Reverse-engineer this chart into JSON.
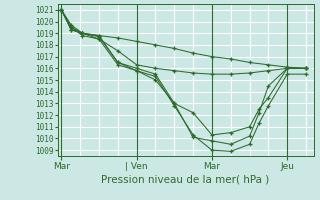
{
  "title": "Pression niveau de la mer( hPa )",
  "bg_color": "#cce8e4",
  "plot_bg_color": "#cce8e4",
  "grid_color": "#ffffff",
  "line_color": "#2d6a2d",
  "ylim": [
    1008.5,
    1021.5
  ],
  "yticks": [
    1009,
    1010,
    1011,
    1012,
    1013,
    1014,
    1015,
    1016,
    1017,
    1018,
    1019,
    1020,
    1021
  ],
  "xlim": [
    -0.05,
    3.35
  ],
  "xtick_labels": [
    "Mar",
    "| Ven",
    "Mar",
    "Jeu"
  ],
  "xtick_positions": [
    0,
    1,
    2,
    3
  ],
  "series": [
    {
      "x": [
        0.0,
        0.13,
        0.28,
        0.5,
        0.75,
        1.0,
        1.25,
        1.5,
        1.75,
        2.0,
        2.25,
        2.5,
        2.75,
        3.0,
        3.25
      ],
      "y": [
        1021.0,
        1019.7,
        1019.0,
        1018.8,
        1018.6,
        1018.3,
        1018.0,
        1017.7,
        1017.3,
        1017.0,
        1016.8,
        1016.5,
        1016.3,
        1016.1,
        1016.0
      ]
    },
    {
      "x": [
        0.0,
        0.13,
        0.28,
        0.5,
        0.75,
        1.0,
        1.25,
        1.5,
        1.75,
        2.0,
        2.25,
        2.5,
        2.75,
        3.0,
        3.25
      ],
      "y": [
        1021.0,
        1019.5,
        1018.8,
        1018.5,
        1017.5,
        1016.3,
        1016.0,
        1015.8,
        1015.6,
        1015.5,
        1015.5,
        1015.6,
        1015.8,
        1016.0,
        1016.0
      ]
    },
    {
      "x": [
        0.0,
        0.13,
        0.28,
        0.5,
        0.75,
        1.0,
        1.25,
        1.5,
        1.75,
        2.0,
        2.25,
        2.5,
        2.625,
        2.75,
        3.0,
        3.25
      ],
      "y": [
        1021.0,
        1019.3,
        1019.0,
        1018.7,
        1016.5,
        1016.0,
        1015.5,
        1013.0,
        1012.2,
        1010.3,
        1010.5,
        1011.0,
        1012.5,
        1013.5,
        1016.0,
        1016.0
      ]
    },
    {
      "x": [
        0.0,
        0.13,
        0.28,
        0.5,
        0.75,
        1.0,
        1.25,
        1.5,
        1.75,
        2.0,
        2.25,
        2.5,
        2.625,
        2.75,
        3.0,
        3.25
      ],
      "y": [
        1021.0,
        1019.3,
        1019.0,
        1018.5,
        1016.3,
        1015.8,
        1015.3,
        1012.8,
        1010.3,
        1009.0,
        1008.9,
        1009.5,
        1011.3,
        1012.8,
        1015.5,
        1015.5
      ]
    },
    {
      "x": [
        0.0,
        0.13,
        0.28,
        0.5,
        0.75,
        1.0,
        1.25,
        1.5,
        1.75,
        2.0,
        2.25,
        2.5,
        2.625,
        2.75,
        3.0,
        3.25
      ],
      "y": [
        1021.0,
        1019.5,
        1019.0,
        1018.8,
        1016.5,
        1015.8,
        1015.0,
        1013.0,
        1010.1,
        1009.8,
        1009.5,
        1010.2,
        1012.2,
        1014.5,
        1016.0,
        1016.0
      ]
    }
  ],
  "vline_positions": [
    0,
    1,
    2,
    3
  ],
  "ylabel_fontsize": 5.5,
  "xlabel_fontsize": 7,
  "tick_fontsize": 6.5,
  "title_fontsize": 7.5
}
